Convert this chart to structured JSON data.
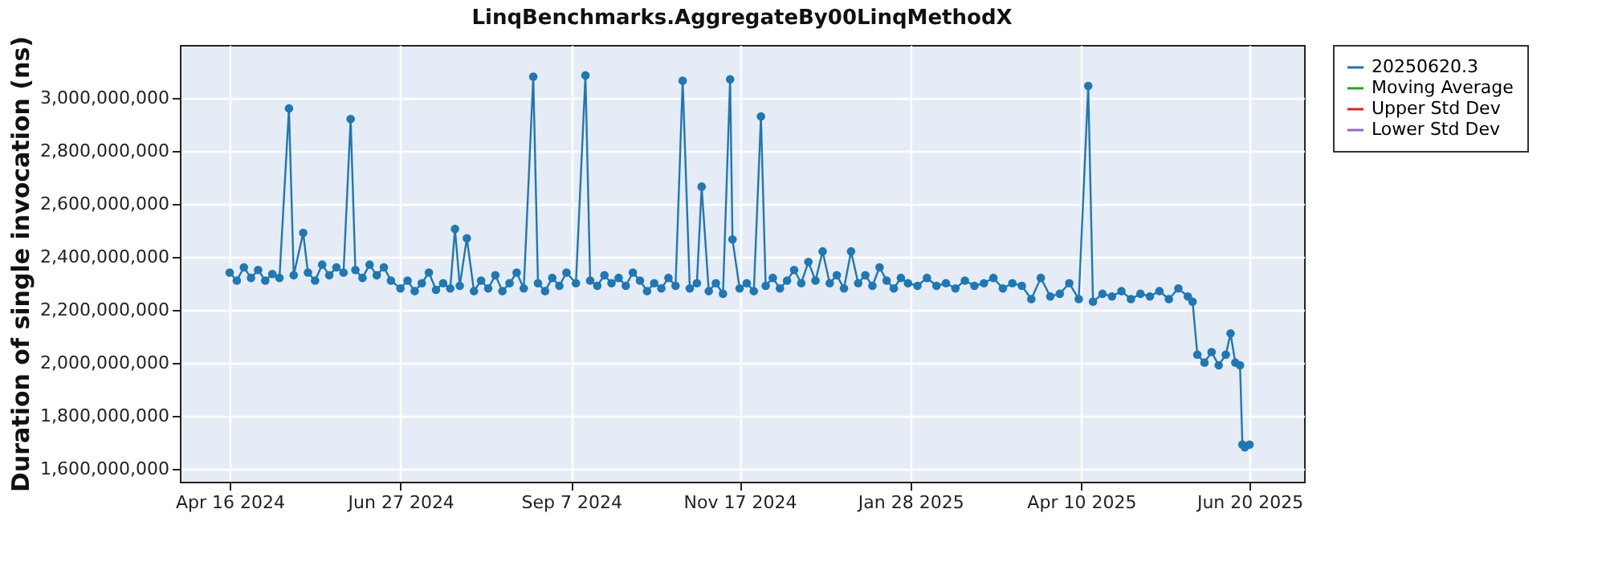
{
  "chart_data": {
    "type": "line",
    "title": "LinqBenchmarks.AggregateBy00LinqMethodX",
    "ylabel": "Duration of single invocation (ns)",
    "x": [
      "2024-04-16",
      "2024-04-19",
      "2024-04-22",
      "2024-04-25",
      "2024-04-28",
      "2024-05-01",
      "2024-05-04",
      "2024-05-07",
      "2024-05-11",
      "2024-05-13",
      "2024-05-17",
      "2024-05-19",
      "2024-05-22",
      "2024-05-25",
      "2024-05-28",
      "2024-05-31",
      "2024-06-03",
      "2024-06-06",
      "2024-06-08",
      "2024-06-11",
      "2024-06-14",
      "2024-06-17",
      "2024-06-20",
      "2024-06-23",
      "2024-06-27",
      "2024-06-30",
      "2024-07-03",
      "2024-07-06",
      "2024-07-09",
      "2024-07-12",
      "2024-07-15",
      "2024-07-18",
      "2024-07-20",
      "2024-07-22",
      "2024-07-25",
      "2024-07-28",
      "2024-07-31",
      "2024-08-03",
      "2024-08-06",
      "2024-08-09",
      "2024-08-12",
      "2024-08-15",
      "2024-08-18",
      "2024-08-22",
      "2024-08-24",
      "2024-08-27",
      "2024-08-30",
      "2024-09-02",
      "2024-09-05",
      "2024-09-09",
      "2024-09-13",
      "2024-09-15",
      "2024-09-18",
      "2024-09-21",
      "2024-09-24",
      "2024-09-27",
      "2024-09-30",
      "2024-10-03",
      "2024-10-06",
      "2024-10-09",
      "2024-10-12",
      "2024-10-15",
      "2024-10-18",
      "2024-10-21",
      "2024-10-24",
      "2024-10-27",
      "2024-10-30",
      "2024-11-01",
      "2024-11-04",
      "2024-11-07",
      "2024-11-10",
      "2024-11-13",
      "2024-11-14",
      "2024-11-17",
      "2024-11-20",
      "2024-11-23",
      "2024-11-26",
      "2024-11-28",
      "2024-12-01",
      "2024-12-04",
      "2024-12-07",
      "2024-12-10",
      "2024-12-13",
      "2024-12-16",
      "2024-12-19",
      "2024-12-22",
      "2024-12-25",
      "2024-12-28",
      "2024-12-31",
      "2025-01-03",
      "2025-01-06",
      "2025-01-09",
      "2025-01-12",
      "2025-01-15",
      "2025-01-18",
      "2025-01-21",
      "2025-01-24",
      "2025-01-27",
      "2025-01-31",
      "2025-02-04",
      "2025-02-08",
      "2025-02-12",
      "2025-02-16",
      "2025-02-20",
      "2025-02-24",
      "2025-02-28",
      "2025-03-04",
      "2025-03-08",
      "2025-03-12",
      "2025-03-16",
      "2025-03-20",
      "2025-03-24",
      "2025-03-28",
      "2025-04-01",
      "2025-04-05",
      "2025-04-09",
      "2025-04-13",
      "2025-04-15",
      "2025-04-19",
      "2025-04-23",
      "2025-04-27",
      "2025-05-01",
      "2025-05-05",
      "2025-05-09",
      "2025-05-13",
      "2025-05-17",
      "2025-05-21",
      "2025-05-25",
      "2025-05-27",
      "2025-05-29",
      "2025-06-01",
      "2025-06-04",
      "2025-06-07",
      "2025-06-10",
      "2025-06-12",
      "2025-06-14",
      "2025-06-16",
      "2025-06-17",
      "2025-06-18",
      "2025-06-20"
    ],
    "series": [
      {
        "name": "20250620.3",
        "color": "#1f77b4",
        "values": [
          2340000000,
          2310000000,
          2360000000,
          2320000000,
          2350000000,
          2310000000,
          2335000000,
          2320000000,
          2960000000,
          2330000000,
          2490000000,
          2340000000,
          2310000000,
          2370000000,
          2330000000,
          2360000000,
          2340000000,
          2920000000,
          2350000000,
          2320000000,
          2370000000,
          2330000000,
          2360000000,
          2310000000,
          2280000000,
          2310000000,
          2270000000,
          2300000000,
          2340000000,
          2275000000,
          2300000000,
          2280000000,
          2505000000,
          2290000000,
          2470000000,
          2270000000,
          2310000000,
          2280000000,
          2330000000,
          2270000000,
          2300000000,
          2340000000,
          2280000000,
          3080000000,
          2300000000,
          2270000000,
          2320000000,
          2290000000,
          2340000000,
          2300000000,
          3085000000,
          2310000000,
          2290000000,
          2330000000,
          2300000000,
          2320000000,
          2290000000,
          2340000000,
          2310000000,
          2270000000,
          2300000000,
          2280000000,
          2320000000,
          2290000000,
          3065000000,
          2280000000,
          2300000000,
          2665000000,
          2270000000,
          2300000000,
          2260000000,
          3070000000,
          2465000000,
          2280000000,
          2300000000,
          2270000000,
          2930000000,
          2290000000,
          2320000000,
          2280000000,
          2310000000,
          2350000000,
          2300000000,
          2380000000,
          2310000000,
          2420000000,
          2300000000,
          2330000000,
          2280000000,
          2420000000,
          2300000000,
          2330000000,
          2290000000,
          2360000000,
          2310000000,
          2280000000,
          2320000000,
          2300000000,
          2290000000,
          2320000000,
          2290000000,
          2300000000,
          2280000000,
          2310000000,
          2290000000,
          2300000000,
          2320000000,
          2280000000,
          2300000000,
          2290000000,
          2240000000,
          2320000000,
          2250000000,
          2260000000,
          2300000000,
          2240000000,
          3045000000,
          2230000000,
          2260000000,
          2250000000,
          2270000000,
          2240000000,
          2260000000,
          2250000000,
          2270000000,
          2240000000,
          2280000000,
          2250000000,
          2230000000,
          2030000000,
          2000000000,
          2040000000,
          1990000000,
          2030000000,
          2110000000,
          2000000000,
          1990000000,
          1690000000,
          1680000000,
          1690000000
        ]
      },
      {
        "name": "Moving Average",
        "color": "#2ca02c",
        "values": [
          null,
          null,
          null,
          null,
          null,
          null,
          null,
          null,
          null,
          null,
          null,
          null,
          null,
          null,
          null,
          null,
          null,
          null,
          null,
          null,
          null,
          null,
          null,
          null,
          null,
          null,
          null,
          null,
          null,
          null,
          null,
          null,
          null,
          null,
          null,
          null,
          null,
          null,
          null,
          null,
          null,
          null,
          null,
          null,
          null,
          null,
          null,
          null,
          null,
          null,
          null,
          null,
          null,
          null,
          null,
          null,
          null,
          null,
          null,
          null,
          null,
          null,
          null,
          null,
          null,
          null,
          null,
          null,
          null,
          null,
          null,
          null,
          null,
          null,
          null,
          null,
          null,
          null,
          null,
          null,
          null,
          null,
          null,
          null,
          null,
          null,
          null,
          null,
          null,
          null,
          null,
          null,
          null,
          null,
          null,
          null,
          null,
          null,
          null,
          null,
          null,
          null,
          null,
          null,
          null,
          null,
          null,
          null,
          null,
          null,
          null,
          null,
          null,
          null,
          null,
          null,
          null,
          null,
          null,
          null,
          null,
          null,
          null,
          null,
          null,
          null,
          null,
          null,
          null,
          null,
          null,
          null,
          null,
          null,
          null,
          null,
          null,
          null,
          null,
          null
        ]
      },
      {
        "name": "Upper Std Dev",
        "color": "#d62728",
        "values": [
          null,
          null,
          null,
          null,
          null,
          null,
          null,
          null,
          null,
          null,
          null,
          null,
          null,
          null,
          null,
          null,
          null,
          null,
          null,
          null,
          null,
          null,
          null,
          null,
          null,
          null,
          null,
          null,
          null,
          null,
          null,
          null,
          null,
          null,
          null,
          null,
          null,
          null,
          null,
          null,
          null,
          null,
          null,
          null,
          null,
          null,
          null,
          null,
          null,
          null,
          null,
          null,
          null,
          null,
          null,
          null,
          null,
          null,
          null,
          null,
          null,
          null,
          null,
          null,
          null,
          null,
          null,
          null,
          null,
          null,
          null,
          null,
          null,
          null,
          null,
          null,
          null,
          null,
          null,
          null,
          null,
          null,
          null,
          null,
          null,
          null,
          null,
          null,
          null,
          null,
          null,
          null,
          null,
          null,
          null,
          null,
          null,
          null,
          null,
          null,
          null,
          null,
          null,
          null,
          null,
          null,
          null,
          null,
          null,
          null,
          null,
          null,
          null,
          null,
          null,
          null,
          null,
          null,
          null,
          null,
          null,
          null,
          null,
          null,
          null,
          null,
          null,
          null,
          null,
          null,
          null,
          null,
          null,
          null,
          null,
          null,
          null,
          null,
          null,
          null
        ]
      },
      {
        "name": "Lower Std Dev",
        "color": "#9467bd",
        "values": [
          null,
          null,
          null,
          null,
          null,
          null,
          null,
          null,
          null,
          null,
          null,
          null,
          null,
          null,
          null,
          null,
          null,
          null,
          null,
          null,
          null,
          null,
          null,
          null,
          null,
          null,
          null,
          null,
          null,
          null,
          null,
          null,
          null,
          null,
          null,
          null,
          null,
          null,
          null,
          null,
          null,
          null,
          null,
          null,
          null,
          null,
          null,
          null,
          null,
          null,
          null,
          null,
          null,
          null,
          null,
          null,
          null,
          null,
          null,
          null,
          null,
          null,
          null,
          null,
          null,
          null,
          null,
          null,
          null,
          null,
          null,
          null,
          null,
          null,
          null,
          null,
          null,
          null,
          null,
          null,
          null,
          null,
          null,
          null,
          null,
          null,
          null,
          null,
          null,
          null,
          null,
          null,
          null,
          null,
          null,
          null,
          null,
          null,
          null,
          null,
          null,
          null,
          null,
          null,
          null,
          null,
          null,
          null,
          null,
          null,
          null,
          null,
          null,
          null,
          null,
          null,
          null,
          null,
          null,
          null,
          null,
          null,
          null,
          null,
          null,
          null,
          null,
          null,
          null,
          null,
          null,
          null,
          null,
          null,
          null,
          null,
          null,
          null,
          null,
          null
        ]
      }
    ],
    "xlim": [
      "2024-03-26",
      "2025-07-13"
    ],
    "xticks": [
      {
        "value": "2024-04-16",
        "label": "Apr 16 2024"
      },
      {
        "value": "2024-06-27",
        "label": "Jun 27 2024"
      },
      {
        "value": "2024-09-07",
        "label": "Sep 7 2024"
      },
      {
        "value": "2024-11-17",
        "label": "Nov 17 2024"
      },
      {
        "value": "2025-01-28",
        "label": "Jan 28 2025"
      },
      {
        "value": "2025-04-10",
        "label": "Apr 10 2025"
      },
      {
        "value": "2025-06-20",
        "label": "Jun 20 2025"
      }
    ],
    "ylim": [
      1550000000,
      3200000000
    ],
    "yticks": [
      {
        "value": 1600000000,
        "label": "1,600,000,000"
      },
      {
        "value": 1800000000,
        "label": "1,800,000,000"
      },
      {
        "value": 2000000000,
        "label": "2,000,000,000"
      },
      {
        "value": 2200000000,
        "label": "2,200,000,000"
      },
      {
        "value": 2400000000,
        "label": "2,400,000,000"
      },
      {
        "value": 2600000000,
        "label": "2,600,000,000"
      },
      {
        "value": 2800000000,
        "label": "2,800,000,000"
      },
      {
        "value": 3000000000,
        "label": "3,000,000,000"
      }
    ],
    "grid": true,
    "legend": "right",
    "marker": "circle",
    "line_style": "solid"
  }
}
